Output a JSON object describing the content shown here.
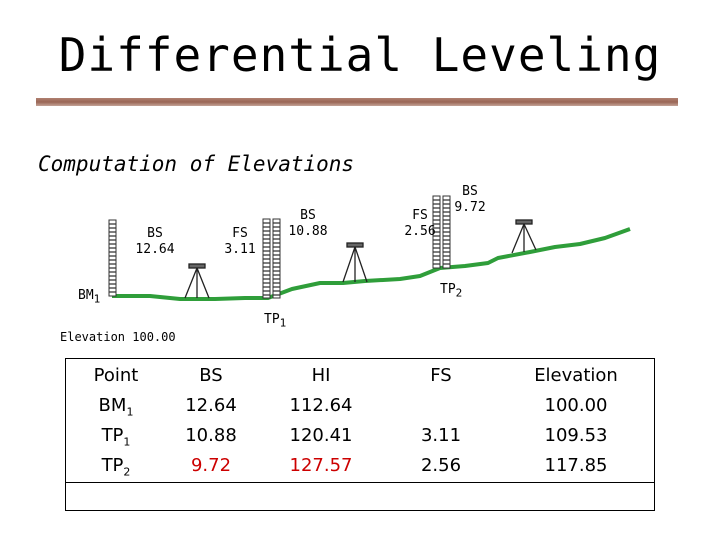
{
  "title": "Differential Leveling",
  "subtitle": "Computation of Elevations",
  "colors": {
    "ground": "#2f9e3a",
    "rule": "#a06d5d",
    "highlight": "#cc0000"
  },
  "readings": [
    {
      "id": "bs1",
      "type": "BS",
      "value": "12.64"
    },
    {
      "id": "fs1",
      "type": "FS",
      "value": "3.11"
    },
    {
      "id": "bs2",
      "type": "BS",
      "value": "10.88"
    },
    {
      "id": "fs2",
      "type": "FS",
      "value": "2.56"
    },
    {
      "id": "bs3",
      "type": "BS",
      "value": "9.72"
    }
  ],
  "points": {
    "bm1": {
      "name": "BM",
      "sub": "1"
    },
    "tp1": {
      "name": "TP",
      "sub": "1"
    },
    "tp2": {
      "name": "TP",
      "sub": "2"
    }
  },
  "elevation_label": "Elevation 100.00",
  "table": {
    "headers": {
      "point": "Point",
      "bs": "BS",
      "hi": "HI",
      "fs": "FS",
      "elev": "Elevation"
    },
    "rows": [
      {
        "point": "BM",
        "sub": "1",
        "bs": "12.64",
        "hi": "112.64",
        "fs": "",
        "elev": "100.00"
      },
      {
        "point": "TP",
        "sub": "1",
        "bs": "10.88",
        "hi": "120.41",
        "fs": "3.11",
        "elev": "109.53"
      },
      {
        "point": "TP",
        "sub": "2",
        "bs": "9.72",
        "hi": "127.57",
        "fs": "2.56",
        "elev": "117.85"
      }
    ]
  }
}
